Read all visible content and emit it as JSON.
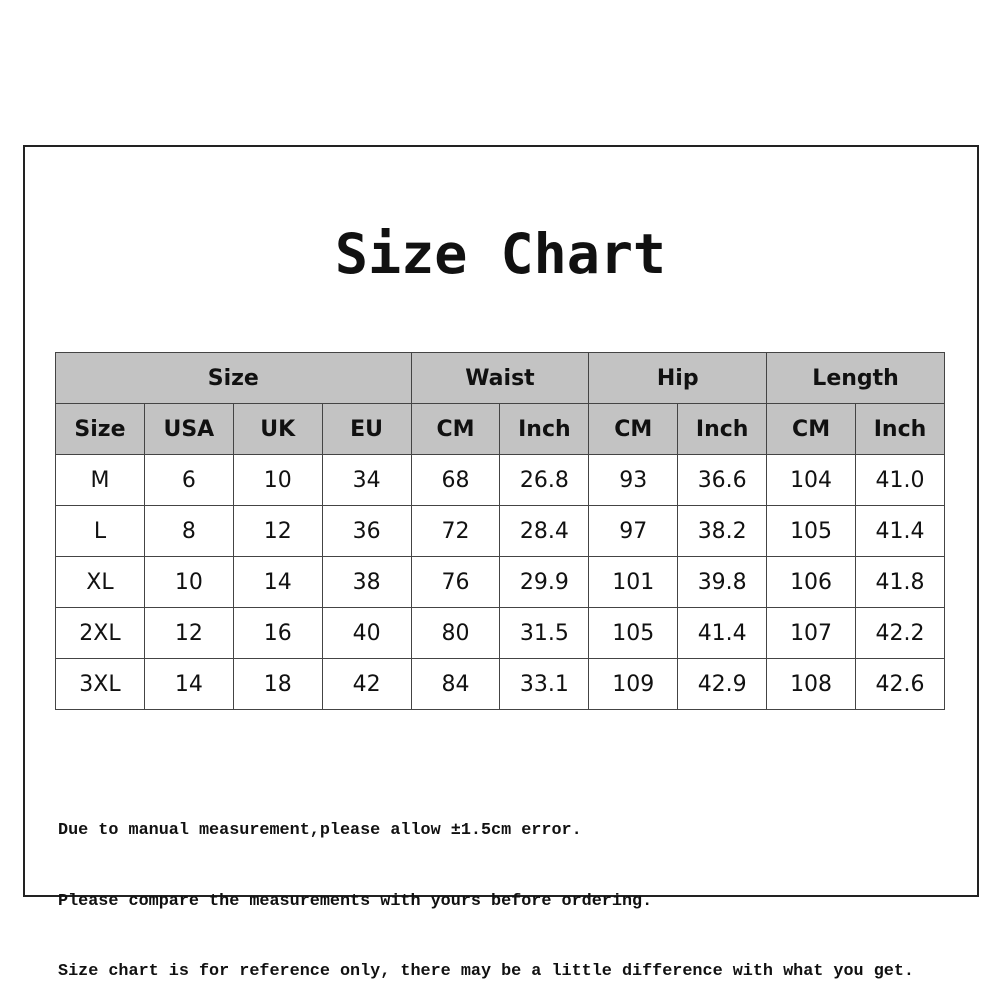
{
  "title": "Size Chart",
  "table": {
    "groups": [
      {
        "label": "Size",
        "span": 4
      },
      {
        "label": "Waist",
        "span": 2
      },
      {
        "label": "Hip",
        "span": 2
      },
      {
        "label": "Length",
        "span": 2
      }
    ],
    "columns": [
      "Size",
      "USA",
      "UK",
      "EU",
      "CM",
      "Inch",
      "CM",
      "Inch",
      "CM",
      "Inch"
    ],
    "rows": [
      [
        "M",
        "6",
        "10",
        "34",
        "68",
        "26.8",
        "93",
        "36.6",
        "104",
        "41.0"
      ],
      [
        "L",
        "8",
        "12",
        "36",
        "72",
        "28.4",
        "97",
        "38.2",
        "105",
        "41.4"
      ],
      [
        "XL",
        "10",
        "14",
        "38",
        "76",
        "29.9",
        "101",
        "39.8",
        "106",
        "41.8"
      ],
      [
        "2XL",
        "12",
        "16",
        "40",
        "80",
        "31.5",
        "105",
        "41.4",
        "107",
        "42.2"
      ],
      [
        "3XL",
        "14",
        "18",
        "42",
        "84",
        "33.1",
        "109",
        "42.9",
        "108",
        "42.6"
      ]
    ]
  },
  "notes": [
    "Due to manual measurement,please allow ±1.5cm error.",
    "Please compare the measurements with yours before ordering.",
    "Size chart is for reference only, there may be a little difference with what you get."
  ]
}
